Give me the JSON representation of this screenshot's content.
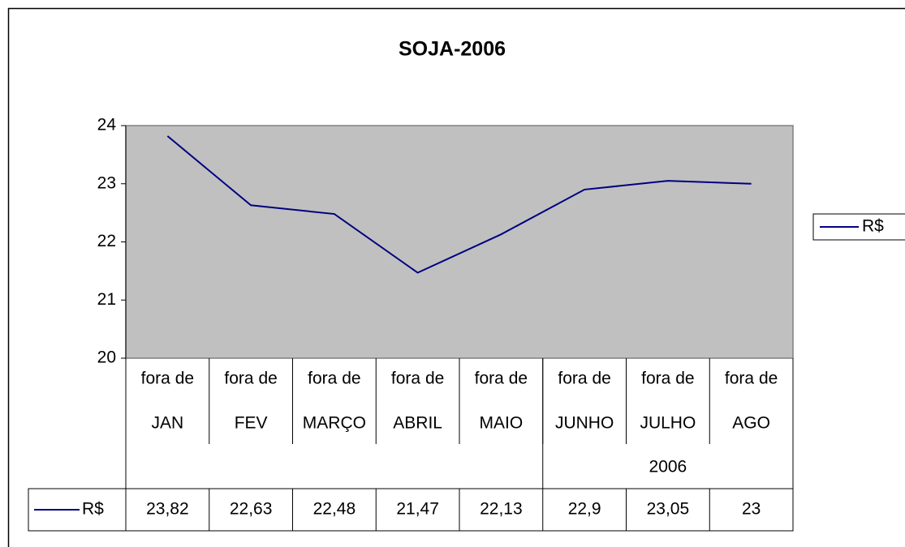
{
  "chart_data": {
    "type": "line",
    "title": "SOJA-2006",
    "categories": [
      [
        "fora de",
        "JAN"
      ],
      [
        "fora de",
        "FEV"
      ],
      [
        "fora de",
        "MARÇO"
      ],
      [
        "fora de",
        "ABRIL"
      ],
      [
        "fora de",
        "MAIO"
      ],
      [
        "fora de",
        "JUNHO"
      ],
      [
        "fora de",
        "JULHO"
      ],
      [
        "fora de",
        "AGO"
      ]
    ],
    "groups": [
      {
        "label": null,
        "count": 5
      },
      {
        "label": "2006",
        "count": 3
      }
    ],
    "series": [
      {
        "name": "R$",
        "color": "#000080",
        "values": [
          23.82,
          22.63,
          22.48,
          21.47,
          22.13,
          22.9,
          23.05,
          23
        ],
        "value_labels": [
          "23,82",
          "22,63",
          "22,48",
          "21,47",
          "22,13",
          "22,9",
          "23,05",
          "23"
        ]
      }
    ],
    "ylim": [
      20,
      24
    ],
    "yticks": [
      20,
      21,
      22,
      23,
      24
    ],
    "plot_background": "#c0c0c0",
    "legend": "right",
    "data_table": true
  }
}
